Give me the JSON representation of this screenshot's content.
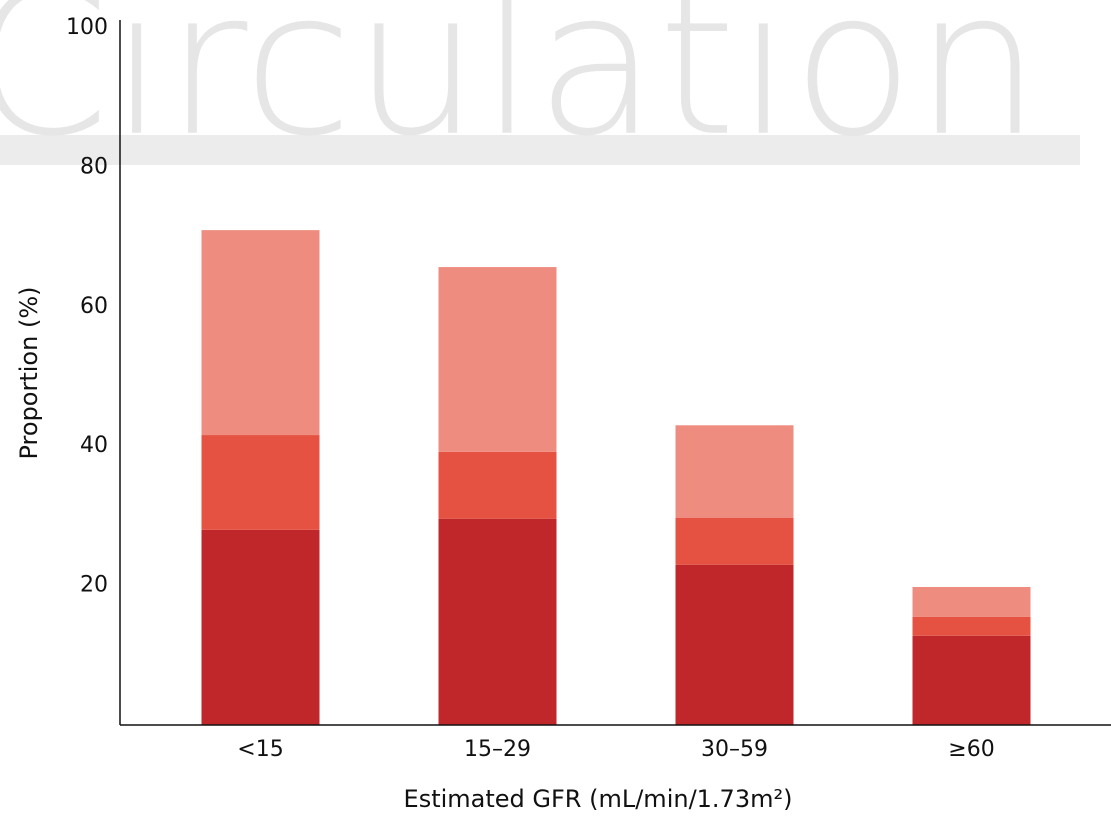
{
  "chart_data": {
    "type": "stacked_bar",
    "watermark": "Circulation",
    "x_label": "Estimated GFR (mL/min/1.73m²)",
    "y_label": "Proportion (%)",
    "categories": [
      "<15",
      "15–29",
      "30–59",
      "≥60"
    ],
    "series": [
      {
        "color": "#c0272a",
        "values": [
          28,
          29.6,
          23,
          12.8
        ]
      },
      {
        "color": "#e55241",
        "values": [
          13.6,
          9.6,
          6.7,
          2.7
        ]
      },
      {
        "color": "#ee8c80",
        "values": [
          29.4,
          26.5,
          13.3,
          4.3
        ]
      }
    ],
    "ylim": [
      0,
      100
    ],
    "yticks": [
      20,
      40,
      60,
      80,
      100
    ]
  }
}
